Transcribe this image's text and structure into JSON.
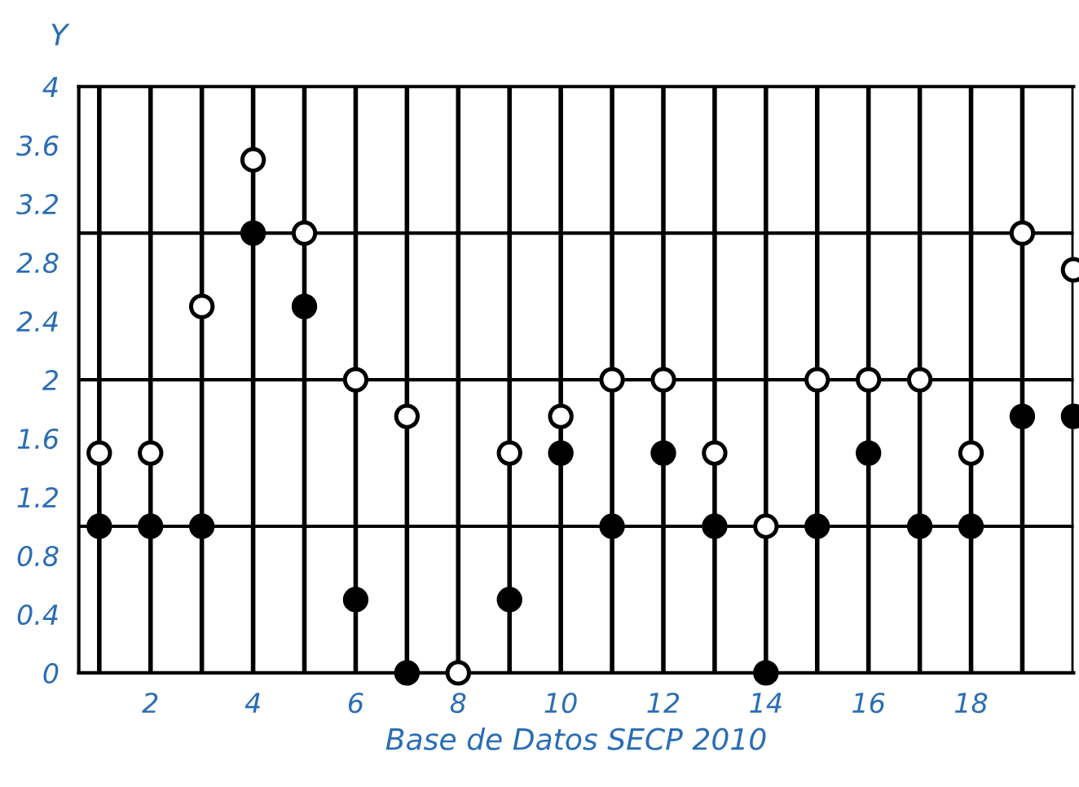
{
  "chart_data": {
    "type": "scatter",
    "xlabel": "Base de Datos SECP 2010",
    "ylabel": "Y",
    "x": [
      1,
      2,
      3,
      4,
      5,
      6,
      7,
      8,
      9,
      10,
      11,
      12,
      13,
      14,
      15,
      16,
      17,
      18,
      19,
      20
    ],
    "series": [
      {
        "color": "#ffffff",
        "values": [
          1.5,
          1.5,
          2.5,
          3.5,
          3,
          2,
          1.75,
          0,
          1.5,
          1.75,
          2,
          2,
          1.5,
          1,
          2,
          2,
          2,
          1.5,
          3,
          2.75
        ]
      },
      {
        "color": "#000000",
        "values": [
          1,
          1,
          1,
          3,
          2.5,
          0.5,
          0,
          null,
          0.5,
          1.5,
          1,
          1.5,
          1,
          0,
          1,
          1.5,
          1,
          1,
          1.75,
          1.75
        ]
      }
    ],
    "xlim": [
      0.6,
      20
    ],
    "xticks": [
      {
        "value": 1,
        "label": null
      },
      2,
      {
        "value": 3,
        "label": null
      },
      4,
      {
        "value": 5,
        "label": null
      },
      6,
      {
        "value": 7,
        "label": null
      },
      8,
      {
        "value": 9,
        "label": null
      },
      10,
      {
        "value": 11,
        "label": null
      },
      12,
      {
        "value": 13,
        "label": null
      },
      14,
      {
        "value": 15,
        "label": null
      },
      16,
      {
        "value": 17,
        "label": null
      },
      18,
      {
        "value": 19,
        "label": null
      },
      {
        "value": 20,
        "label": null
      }
    ],
    "ylim": [
      0,
      4
    ],
    "yticks": [
      0,
      0.4,
      0.8,
      1.2,
      1.6,
      2,
      2.4,
      2.8,
      3.2,
      3.6,
      4
    ],
    "ref_lines": [
      {
        "axis": "y",
        "value": 1,
        "label": null
      },
      {
        "axis": "y",
        "value": 2,
        "label": null
      },
      {
        "axis": "y",
        "value": 3,
        "label": null
      }
    ],
    "grid": "x",
    "marker": "circle",
    "legend": false
  }
}
